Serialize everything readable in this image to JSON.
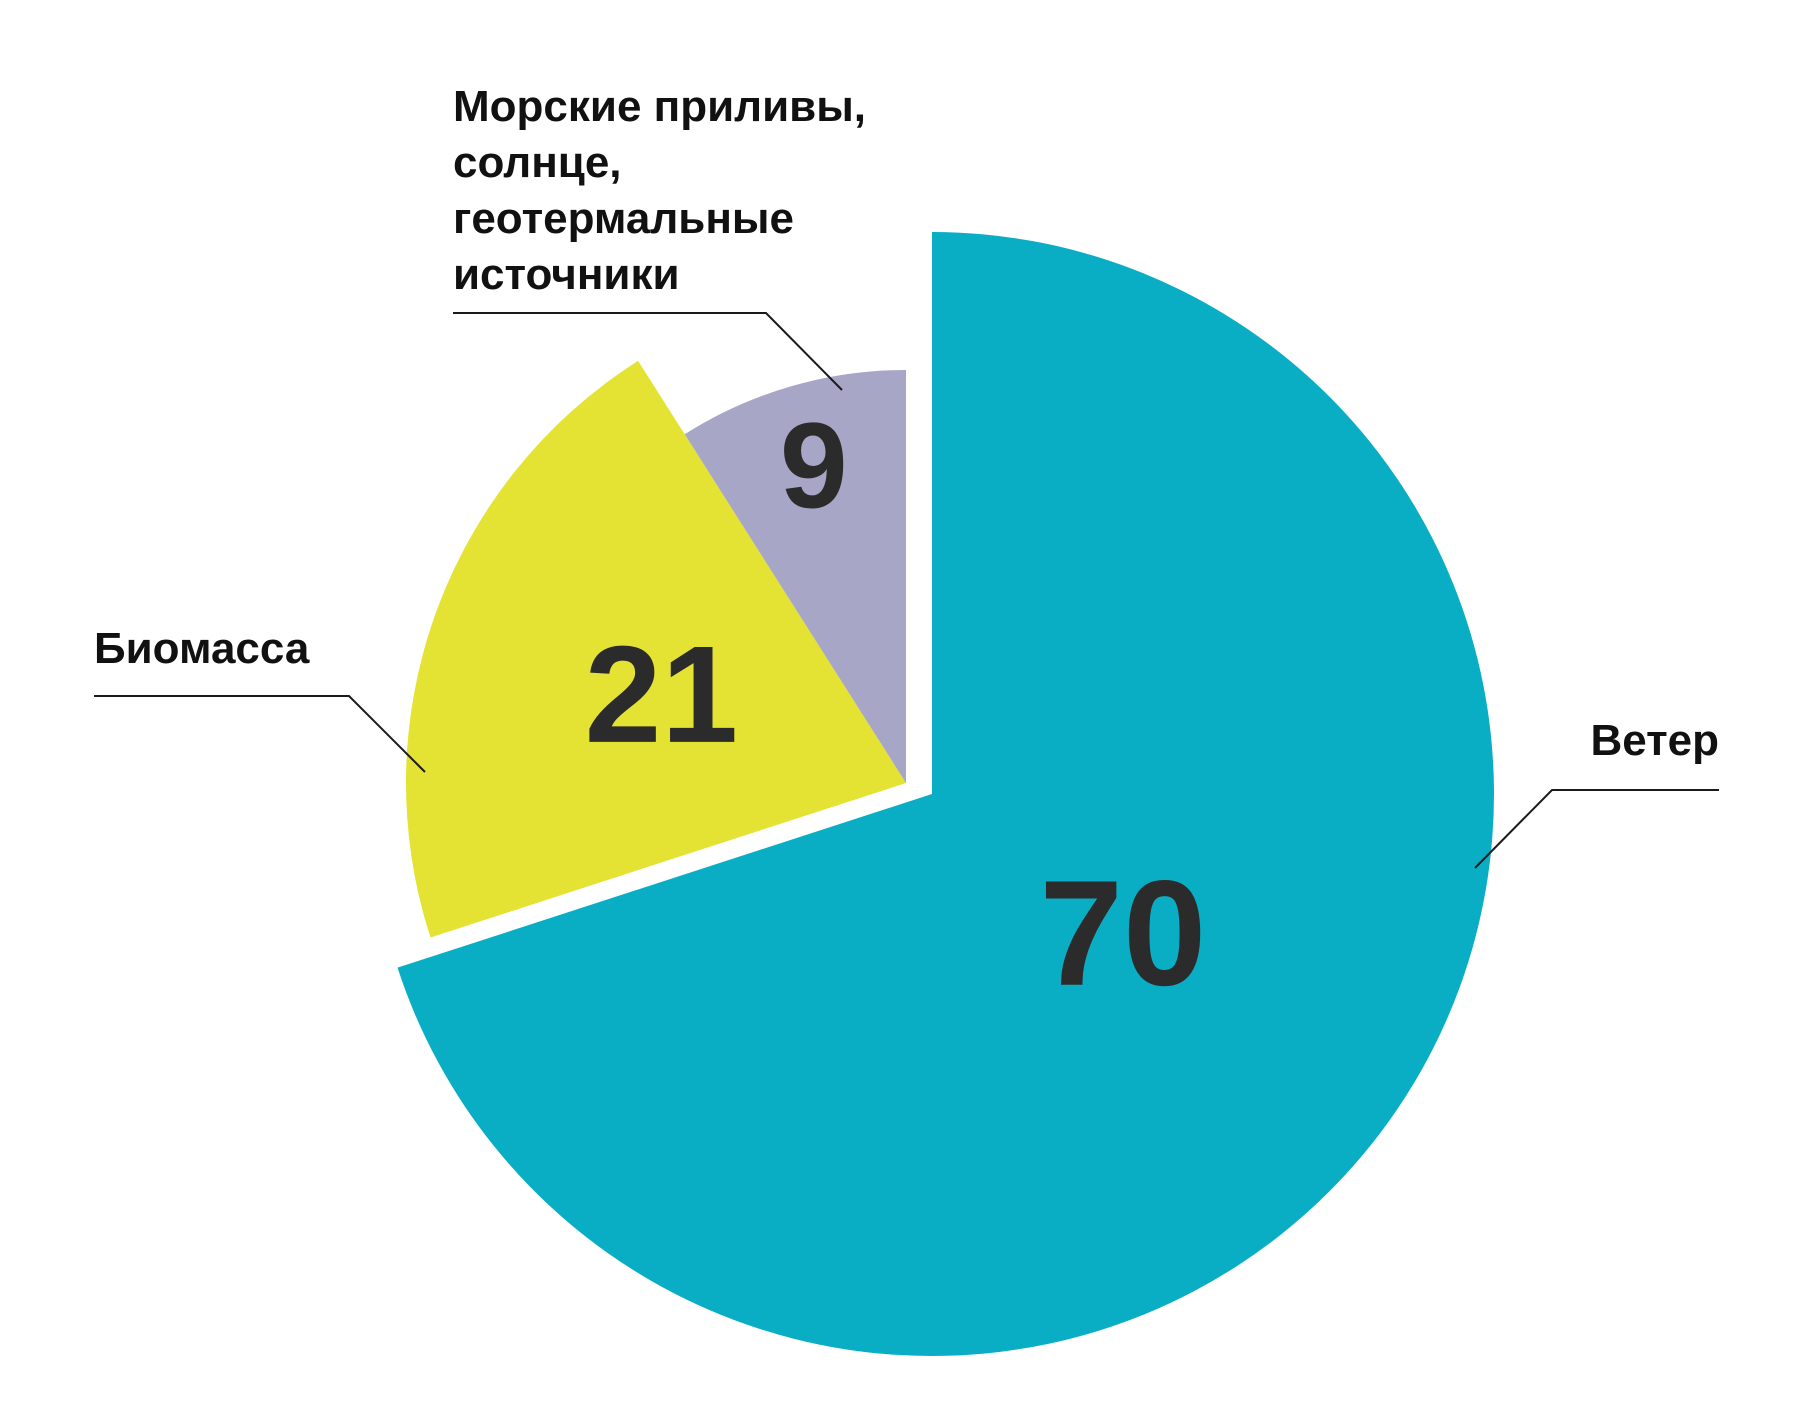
{
  "chart_data": {
    "type": "pie",
    "title": "",
    "slices": [
      {
        "label": "Ветер",
        "value": 70,
        "color": "#0aaec4"
      },
      {
        "label": "Биомасса",
        "value": 21,
        "color": "#e4e232"
      },
      {
        "label": "Морские приливы, солнце, геотермальные источники",
        "label_lines": [
          "Морские приливы,",
          "солнце,",
          "геотермальные",
          "источники"
        ],
        "value": 9,
        "color": "#a8a6c6"
      }
    ],
    "legend": "none"
  }
}
